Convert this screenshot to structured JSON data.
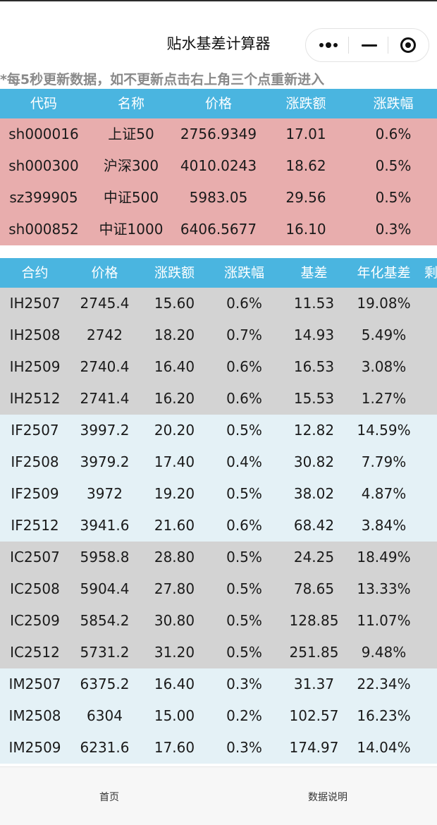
{
  "nav": {
    "title": "贴水基差计算器",
    "capsule": {
      "more_icon": "more-dots-icon",
      "minimize_icon": "minimize-icon",
      "close_icon": "target-circle-icon"
    }
  },
  "notice": "*每5秒更新数据，如不更新点击右上角三个点重新进入",
  "index_table": {
    "headers": [
      "代码",
      "名称",
      "价格",
      "涨跌额",
      "涨跌幅"
    ],
    "rows": [
      [
        "sh000016",
        "上证50",
        "2756.9349",
        "17.01",
        "0.6%"
      ],
      [
        "sh000300",
        "沪深300",
        "4010.0243",
        "18.62",
        "0.5%"
      ],
      [
        "sz399905",
        "中证500",
        "5983.05",
        "29.56",
        "0.5%"
      ],
      [
        "sh000852",
        "中证1000",
        "6406.5677",
        "16.10",
        "0.3%"
      ]
    ],
    "row_color": "#e8adad"
  },
  "futures_table": {
    "headers": [
      "合约",
      "价格",
      "涨跌额",
      "涨跌幅",
      "基差",
      "年化基差",
      "剩"
    ],
    "groups": [
      {
        "color": "#d3d3d3",
        "rows": [
          [
            "IH2507",
            "2745.4",
            "15.60",
            "0.6%",
            "11.53",
            "19.08%"
          ],
          [
            "IH2508",
            "2742",
            "18.20",
            "0.7%",
            "14.93",
            "5.49%"
          ],
          [
            "IH2509",
            "2740.4",
            "16.40",
            "0.6%",
            "16.53",
            "3.08%"
          ],
          [
            "IH2512",
            "2741.4",
            "16.20",
            "0.6%",
            "15.53",
            "1.27%"
          ]
        ]
      },
      {
        "color": "#e4f1f6",
        "rows": [
          [
            "IF2507",
            "3997.2",
            "20.20",
            "0.5%",
            "12.82",
            "14.59%"
          ],
          [
            "IF2508",
            "3979.2",
            "17.40",
            "0.4%",
            "30.82",
            "7.79%"
          ],
          [
            "IF2509",
            "3972",
            "19.20",
            "0.5%",
            "38.02",
            "4.87%"
          ],
          [
            "IF2512",
            "3941.6",
            "21.60",
            "0.6%",
            "68.42",
            "3.84%"
          ]
        ]
      },
      {
        "color": "#d3d3d3",
        "rows": [
          [
            "IC2507",
            "5958.8",
            "28.80",
            "0.5%",
            "24.25",
            "18.49%"
          ],
          [
            "IC2508",
            "5904.4",
            "27.80",
            "0.5%",
            "78.65",
            "13.33%"
          ],
          [
            "IC2509",
            "5854.2",
            "30.80",
            "0.5%",
            "128.85",
            "11.07%"
          ],
          [
            "IC2512",
            "5731.2",
            "31.20",
            "0.5%",
            "251.85",
            "9.48%"
          ]
        ]
      },
      {
        "color": "#e4f1f6",
        "rows": [
          [
            "IM2507",
            "6375.2",
            "16.40",
            "0.3%",
            "31.37",
            "22.34%"
          ],
          [
            "IM2508",
            "6304",
            "15.00",
            "0.2%",
            "102.57",
            "16.23%"
          ],
          [
            "IM2509",
            "6231.6",
            "17.60",
            "0.3%",
            "174.97",
            "14.04%"
          ]
        ]
      }
    ]
  },
  "tab_bar": {
    "home_label": "首页",
    "data_label": "数据说明"
  },
  "colors": {
    "header_blue": "#4ab5e0",
    "notice_gray": "#8a8a8a"
  }
}
